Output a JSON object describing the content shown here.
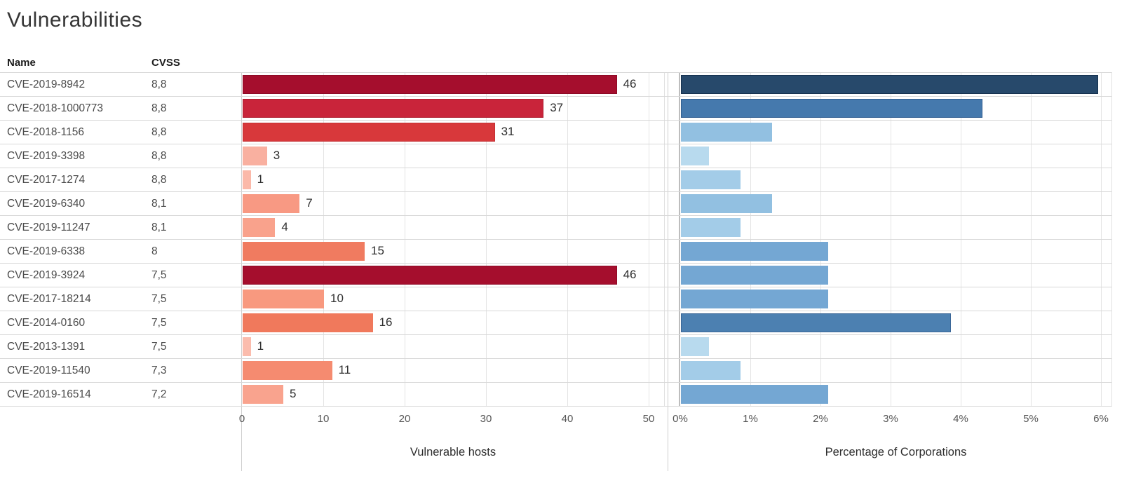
{
  "title": "Vulnerabilities",
  "table": {
    "name_header": "Name",
    "cvss_header": "CVSS"
  },
  "left_chart": {
    "xlabel": "Vulnerable hosts",
    "ticks": [
      "0",
      "10",
      "20",
      "30",
      "40",
      "50"
    ]
  },
  "right_chart": {
    "xlabel": "Percentage of Corporations",
    "ticks": [
      "0%",
      "1%",
      "2%",
      "3%",
      "4%",
      "5%",
      "6%"
    ]
  },
  "rows": [
    {
      "name": "CVE-2019-8942",
      "cvss": "8,8",
      "hosts": 46,
      "hosts_label": "46",
      "hosts_color": "#A50E2D",
      "hosts_border": "#8D0A26",
      "pct": 5.95,
      "pct_color": "#27496B",
      "pct_border": "#16314F"
    },
    {
      "name": "CVE-2018-1000773",
      "cvss": "8,8",
      "hosts": 37,
      "hosts_label": "37",
      "hosts_color": "#C9243A",
      "hosts_border": "#B01F32",
      "pct": 4.3,
      "pct_color": "#4579AD",
      "pct_border": "#325F91"
    },
    {
      "name": "CVE-2018-1156",
      "cvss": "8,8",
      "hosts": 31,
      "hosts_label": "31",
      "hosts_color": "#D8383B",
      "hosts_border": "#C33134",
      "pct": 1.3,
      "pct_color": "#92C0E1",
      "pct_border": "#92C0E1"
    },
    {
      "name": "CVE-2019-3398",
      "cvss": "8,8",
      "hosts": 3,
      "hosts_label": "3",
      "hosts_color": "#F9B0A0",
      "hosts_border": "#F9B0A0",
      "pct": 0.4,
      "pct_color": "#B8DAEE",
      "pct_border": "#B8DAEE"
    },
    {
      "name": "CVE-2017-1274",
      "cvss": "8,8",
      "hosts": 1,
      "hosts_label": "1",
      "hosts_color": "#FBB9A9",
      "hosts_border": "#FBB9A9",
      "pct": 0.85,
      "pct_color": "#A3CCE8",
      "pct_border": "#A3CCE8"
    },
    {
      "name": "CVE-2019-6340",
      "cvss": "8,1",
      "hosts": 7,
      "hosts_label": "7",
      "hosts_color": "#F89983",
      "hosts_border": "#F89983",
      "pct": 1.3,
      "pct_color": "#92C0E1",
      "pct_border": "#92C0E1"
    },
    {
      "name": "CVE-2019-11247",
      "cvss": "8,1",
      "hosts": 4,
      "hosts_label": "4",
      "hosts_color": "#F9A28C",
      "hosts_border": "#F9A28C",
      "pct": 0.85,
      "pct_color": "#A3CCE8",
      "pct_border": "#A3CCE8"
    },
    {
      "name": "CVE-2019-6338",
      "cvss": "8",
      "hosts": 15,
      "hosts_label": "15",
      "hosts_color": "#F07B60",
      "hosts_border": "#F07B60",
      "pct": 2.1,
      "pct_color": "#74A7D3",
      "pct_border": "#74A7D3"
    },
    {
      "name": "CVE-2019-3924",
      "cvss": "7,5",
      "hosts": 46,
      "hosts_label": "46",
      "hosts_color": "#A50E2D",
      "hosts_border": "#8D0A26",
      "pct": 2.1,
      "pct_color": "#74A7D3",
      "pct_border": "#74A7D3"
    },
    {
      "name": "CVE-2017-18214",
      "cvss": "7,5",
      "hosts": 10,
      "hosts_label": "10",
      "hosts_color": "#F8997F",
      "hosts_border": "#F8997F",
      "pct": 2.1,
      "pct_color": "#74A7D3",
      "pct_border": "#74A7D3"
    },
    {
      "name": "CVE-2014-0160",
      "cvss": "7,5",
      "hosts": 16,
      "hosts_label": "16",
      "hosts_color": "#F0795C",
      "hosts_border": "#F0795C",
      "pct": 3.85,
      "pct_color": "#4C80B1",
      "pct_border": "#3A6697"
    },
    {
      "name": "CVE-2013-1391",
      "cvss": "7,5",
      "hosts": 1,
      "hosts_label": "1",
      "hosts_color": "#FBBCAD",
      "hosts_border": "#FBBCAD",
      "pct": 0.4,
      "pct_color": "#B8DAEE",
      "pct_border": "#B8DAEE"
    },
    {
      "name": "CVE-2019-11540",
      "cvss": "7,3",
      "hosts": 11,
      "hosts_label": "11",
      "hosts_color": "#F58B70",
      "hosts_border": "#F58B70",
      "pct": 0.85,
      "pct_color": "#A3CCE8",
      "pct_border": "#A3CCE8"
    },
    {
      "name": "CVE-2019-16514",
      "cvss": "7,2",
      "hosts": 5,
      "hosts_label": "5",
      "hosts_color": "#F9A38E",
      "hosts_border": "#F9A38E",
      "pct": 2.1,
      "pct_color": "#74A7D3",
      "pct_border": "#74A7D3"
    }
  ],
  "chart_data": [
    {
      "type": "bar",
      "orientation": "horizontal",
      "title": "Vulnerable hosts",
      "categories": [
        "CVE-2019-8942",
        "CVE-2018-1000773",
        "CVE-2018-1156",
        "CVE-2019-3398",
        "CVE-2017-1274",
        "CVE-2019-6340",
        "CVE-2019-11247",
        "CVE-2019-6338",
        "CVE-2019-3924",
        "CVE-2017-18214",
        "CVE-2014-0160",
        "CVE-2013-1391",
        "CVE-2019-11540",
        "CVE-2019-16514"
      ],
      "cvss": [
        "8,8",
        "8,8",
        "8,8",
        "8,8",
        "8,8",
        "8,1",
        "8,1",
        "8",
        "7,5",
        "7,5",
        "7,5",
        "7,5",
        "7,3",
        "7,2"
      ],
      "values": [
        46,
        37,
        31,
        3,
        1,
        7,
        4,
        15,
        46,
        10,
        16,
        1,
        11,
        5
      ],
      "data_labels": [
        "46",
        "37",
        "31",
        "3",
        "1",
        "7",
        "4",
        "15",
        "46",
        "10",
        "16",
        "1",
        "11",
        "5"
      ],
      "xlabel": "Vulnerable hosts",
      "xlim": [
        0,
        52
      ],
      "xticks": [
        0,
        10,
        20,
        30,
        40,
        50
      ],
      "grid": "vertical",
      "legend": "none",
      "color_encoding": "darker red = more vulnerable hosts"
    },
    {
      "type": "bar",
      "orientation": "horizontal",
      "title": "Percentage of Corporations",
      "categories": [
        "CVE-2019-8942",
        "CVE-2018-1000773",
        "CVE-2018-1156",
        "CVE-2019-3398",
        "CVE-2017-1274",
        "CVE-2019-6340",
        "CVE-2019-11247",
        "CVE-2019-6338",
        "CVE-2019-3924",
        "CVE-2017-18214",
        "CVE-2014-0160",
        "CVE-2013-1391",
        "CVE-2019-11540",
        "CVE-2019-16514"
      ],
      "values": [
        5.95,
        4.3,
        1.3,
        0.4,
        0.85,
        1.3,
        0.85,
        2.1,
        2.1,
        2.1,
        3.85,
        0.4,
        0.85,
        2.1
      ],
      "xlabel": "Percentage of Corporations",
      "xlim": [
        0,
        6.15
      ],
      "xticks": [
        "0%",
        "1%",
        "2%",
        "3%",
        "4%",
        "5%",
        "6%"
      ],
      "grid": "vertical",
      "legend": "none",
      "color_encoding": "darker blue = higher percentage"
    }
  ]
}
